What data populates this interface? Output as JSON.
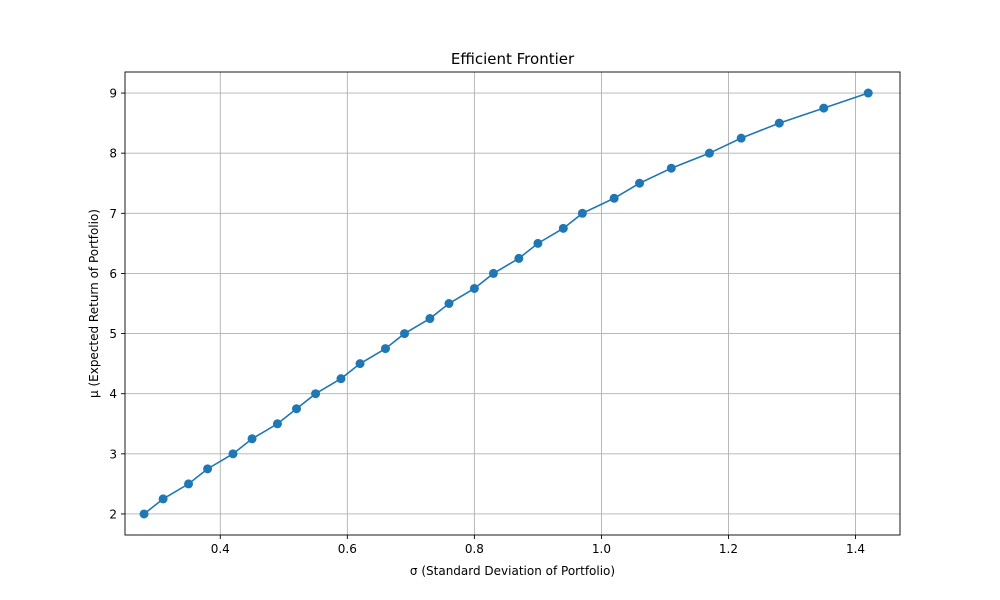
{
  "chart_data": {
    "type": "line",
    "title": "Efficient Frontier",
    "xlabel": "σ (Standard Deviation of Portfolio)",
    "ylabel": "μ (Expected Return of Portfolio)",
    "xlim": [
      0.25,
      1.47
    ],
    "ylim": [
      1.65,
      9.35
    ],
    "xticks": [
      0.4,
      0.6,
      0.8,
      1.0,
      1.2,
      1.4
    ],
    "xtick_labels": [
      "0.4",
      "0.6",
      "0.8",
      "1.0",
      "1.2",
      "1.4"
    ],
    "yticks": [
      2,
      3,
      4,
      5,
      6,
      7,
      8,
      9
    ],
    "ytick_labels": [
      "2",
      "3",
      "4",
      "5",
      "6",
      "7",
      "8",
      "9"
    ],
    "grid": true,
    "series": [
      {
        "color": "#1f77b4",
        "marker": "circle",
        "x": [
          0.28,
          0.31,
          0.35,
          0.38,
          0.42,
          0.45,
          0.49,
          0.52,
          0.55,
          0.59,
          0.62,
          0.66,
          0.69,
          0.73,
          0.76,
          0.8,
          0.83,
          0.87,
          0.9,
          0.94,
          0.97,
          1.02,
          1.06,
          1.11,
          1.17,
          1.22,
          1.28,
          1.35,
          1.42
        ],
        "y": [
          2.0,
          2.25,
          2.5,
          2.75,
          3.0,
          3.25,
          3.5,
          3.75,
          4.0,
          4.25,
          4.5,
          4.75,
          5.0,
          5.25,
          5.5,
          5.75,
          6.0,
          6.25,
          6.5,
          6.75,
          7.0,
          7.25,
          7.5,
          7.75,
          8.0,
          8.25,
          8.5,
          8.75,
          9.0
        ]
      }
    ]
  }
}
